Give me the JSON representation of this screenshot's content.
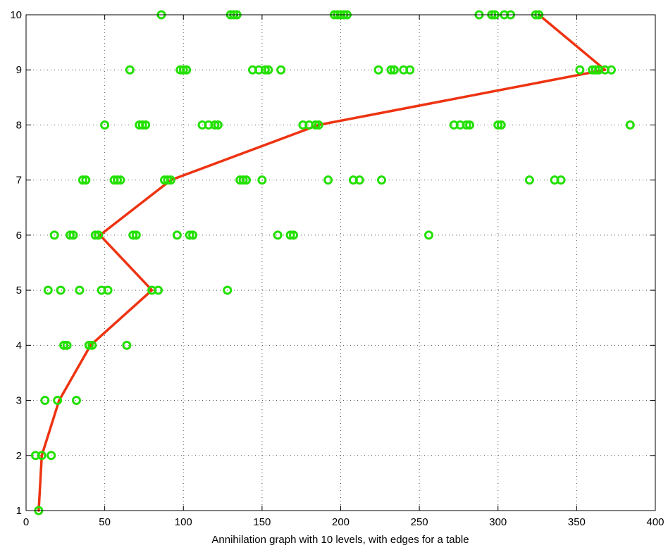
{
  "chart_data": {
    "type": "scatter",
    "title": "",
    "xlabel": "Annihilation graph with 10 levels, with edges for a table",
    "ylabel": "",
    "xlim": [
      0,
      400
    ],
    "ylim": [
      1,
      10
    ],
    "x_ticks": [
      "0",
      "50",
      "100",
      "150",
      "200",
      "250",
      "300",
      "350",
      "400"
    ],
    "y_ticks": [
      "1",
      "2",
      "3",
      "4",
      "5",
      "6",
      "7",
      "8",
      "9",
      "10"
    ],
    "grid": true,
    "grid_style": "dotted",
    "colors": {
      "points": "#22e000",
      "line": "#ee3311",
      "axes": "#000000",
      "grid": "#555555"
    },
    "series": [
      {
        "kind": "scatter",
        "points": [
          [
            8,
            1
          ],
          [
            6,
            2
          ],
          [
            10,
            2
          ],
          [
            16,
            2
          ],
          [
            12,
            3
          ],
          [
            20,
            3
          ],
          [
            32,
            3
          ],
          [
            24,
            4
          ],
          [
            26,
            4
          ],
          [
            40,
            4
          ],
          [
            42,
            4
          ],
          [
            64,
            4
          ],
          [
            14,
            5
          ],
          [
            22,
            5
          ],
          [
            34,
            5
          ],
          [
            48,
            5
          ],
          [
            52,
            5
          ],
          [
            80,
            5
          ],
          [
            84,
            5
          ],
          [
            128,
            5
          ],
          [
            18,
            6
          ],
          [
            28,
            6
          ],
          [
            30,
            6
          ],
          [
            44,
            6
          ],
          [
            46,
            6
          ],
          [
            68,
            6
          ],
          [
            70,
            6
          ],
          [
            96,
            6
          ],
          [
            104,
            6
          ],
          [
            106,
            6
          ],
          [
            160,
            6
          ],
          [
            168,
            6
          ],
          [
            170,
            6
          ],
          [
            256,
            6
          ],
          [
            36,
            7
          ],
          [
            38,
            7
          ],
          [
            56,
            7
          ],
          [
            58,
            7
          ],
          [
            60,
            7
          ],
          [
            88,
            7
          ],
          [
            90,
            7
          ],
          [
            92,
            7
          ],
          [
            136,
            7
          ],
          [
            138,
            7
          ],
          [
            140,
            7
          ],
          [
            150,
            7
          ],
          [
            192,
            7
          ],
          [
            208,
            7
          ],
          [
            212,
            7
          ],
          [
            226,
            7
          ],
          [
            320,
            7
          ],
          [
            336,
            7
          ],
          [
            340,
            7
          ],
          [
            50,
            8
          ],
          [
            72,
            8
          ],
          [
            74,
            8
          ],
          [
            76,
            8
          ],
          [
            112,
            8
          ],
          [
            116,
            8
          ],
          [
            120,
            8
          ],
          [
            122,
            8
          ],
          [
            176,
            8
          ],
          [
            180,
            8
          ],
          [
            184,
            8
          ],
          [
            186,
            8
          ],
          [
            272,
            8
          ],
          [
            276,
            8
          ],
          [
            280,
            8
          ],
          [
            282,
            8
          ],
          [
            300,
            8
          ],
          [
            302,
            8
          ],
          [
            384,
            8
          ],
          [
            66,
            9
          ],
          [
            98,
            9
          ],
          [
            100,
            9
          ],
          [
            102,
            9
          ],
          [
            144,
            9
          ],
          [
            148,
            9
          ],
          [
            152,
            9
          ],
          [
            154,
            9
          ],
          [
            162,
            9
          ],
          [
            224,
            9
          ],
          [
            232,
            9
          ],
          [
            234,
            9
          ],
          [
            240,
            9
          ],
          [
            244,
            9
          ],
          [
            352,
            9
          ],
          [
            360,
            9
          ],
          [
            362,
            9
          ],
          [
            364,
            9
          ],
          [
            368,
            9
          ],
          [
            372,
            9
          ],
          [
            86,
            10
          ],
          [
            130,
            10
          ],
          [
            132,
            10
          ],
          [
            134,
            10
          ],
          [
            196,
            10
          ],
          [
            198,
            10
          ],
          [
            200,
            10
          ],
          [
            202,
            10
          ],
          [
            204,
            10
          ],
          [
            288,
            10
          ],
          [
            296,
            10
          ],
          [
            298,
            10
          ],
          [
            304,
            10
          ],
          [
            308,
            10
          ],
          [
            324,
            10
          ],
          [
            326,
            10
          ]
        ]
      },
      {
        "kind": "line",
        "points": [
          [
            8,
            1
          ],
          [
            9,
            1.5
          ],
          [
            10,
            2
          ],
          [
            21,
            3
          ],
          [
            41,
            4
          ],
          [
            80,
            5
          ],
          [
            47,
            6
          ],
          [
            92,
            7
          ],
          [
            186,
            8
          ],
          [
            368,
            9
          ],
          [
            326,
            10
          ]
        ]
      }
    ]
  }
}
